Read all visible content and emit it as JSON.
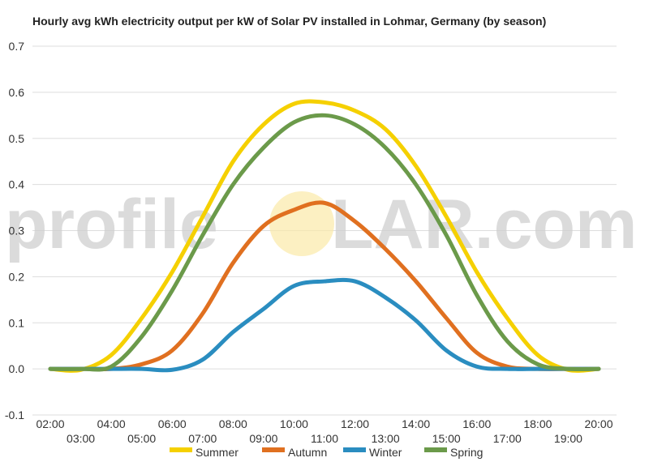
{
  "chart_data": {
    "type": "line",
    "title": "Hourly avg kWh electricity output per kW of Solar PV installed in Lohmar, Germany (by season)",
    "xlabel": "",
    "ylabel": "",
    "ylim": [
      -0.1,
      0.7
    ],
    "yticks": [
      "-0.1",
      "0.0",
      "0.1",
      "0.2",
      "0.3",
      "0.4",
      "0.5",
      "0.6",
      "0.7"
    ],
    "grid": true,
    "legend_position": "bottom",
    "x": [
      "02:00",
      "03:00",
      "04:00",
      "05:00",
      "06:00",
      "07:00",
      "08:00",
      "09:00",
      "10:00",
      "11:00",
      "12:00",
      "13:00",
      "14:00",
      "15:00",
      "16:00",
      "17:00",
      "18:00",
      "19:00",
      "20:00"
    ],
    "series": [
      {
        "name": "Summer",
        "color": "#f5d000",
        "values": [
          0.0,
          -0.002,
          0.03,
          0.11,
          0.21,
          0.33,
          0.45,
          0.53,
          0.575,
          0.578,
          0.56,
          0.52,
          0.44,
          0.33,
          0.21,
          0.11,
          0.03,
          -0.002,
          0.0
        ]
      },
      {
        "name": "Autumn",
        "color": "#e07020",
        "values": [
          0.0,
          0.0,
          0.0,
          0.01,
          0.04,
          0.12,
          0.23,
          0.31,
          0.345,
          0.36,
          0.32,
          0.26,
          0.19,
          0.11,
          0.035,
          0.005,
          0.0,
          0.0,
          0.0
        ]
      },
      {
        "name": "Winter",
        "color": "#2a8dc0",
        "values": [
          0.0,
          0.0,
          0.0,
          0.0,
          -0.002,
          0.02,
          0.08,
          0.13,
          0.18,
          0.19,
          0.19,
          0.155,
          0.105,
          0.04,
          0.005,
          0.0,
          0.0,
          0.0,
          0.0
        ]
      },
      {
        "name": "Spring",
        "color": "#6b9a4a",
        "values": [
          0.0,
          0.0,
          0.005,
          0.07,
          0.17,
          0.29,
          0.4,
          0.48,
          0.535,
          0.55,
          0.53,
          0.48,
          0.4,
          0.29,
          0.16,
          0.06,
          0.01,
          0.0,
          0.0
        ]
      }
    ]
  },
  "watermark": {
    "left": "profile",
    "right": "LAR.com",
    "logo_word": "profileSOLAR.com"
  }
}
